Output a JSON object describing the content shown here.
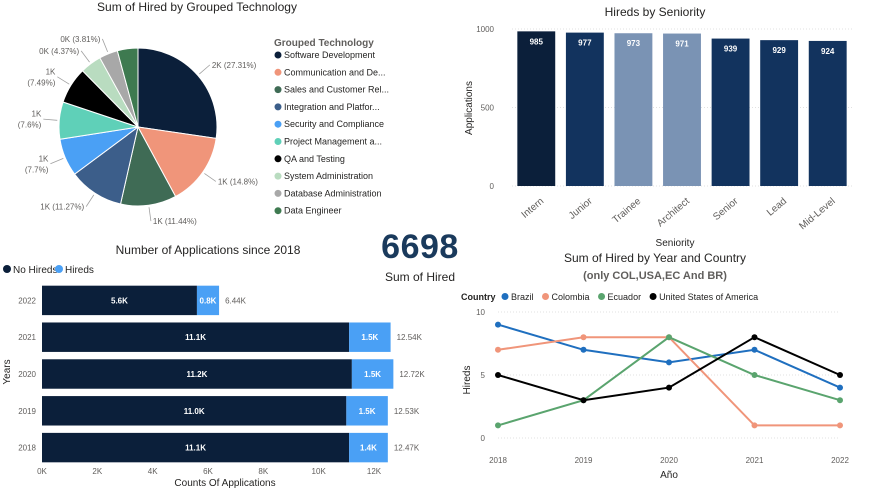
{
  "colors": {
    "navy": "#0b1f3a",
    "blue_dark": "#12335e",
    "blue_light": "#7a93b4",
    "accent_blue": "#4aa0f5",
    "brazil": "#1f6fbf",
    "colombia": "#f0957a",
    "ecuador": "#5aa46e",
    "usa": "#000000"
  },
  "pie": {
    "title": "Sum of Hired by Grouped Technology",
    "legend_title": "Grouped Technology",
    "slices": [
      {
        "name": "Software Development",
        "pct": 27.31,
        "label": "2K (27.31%)",
        "color": "#0b1f3a"
      },
      {
        "name": "Communication and De...",
        "pct": 14.8,
        "label": "1K (14.8%)",
        "color": "#f0957a"
      },
      {
        "name": "Sales and Customer Rel...",
        "pct": 11.44,
        "label": "1K (11.44%)",
        "color": "#3f6b55"
      },
      {
        "name": "Integration and Platfor...",
        "pct": 11.27,
        "label": "1K (11.27%)",
        "color": "#3c5e8a"
      },
      {
        "name": "Security and Compliance",
        "pct": 7.7,
        "label": "1K\n(7.7%)",
        "color": "#4aa0f5"
      },
      {
        "name": "Project Management a...",
        "pct": 7.6,
        "label": "1K\n(7.6%)",
        "color": "#5fd0b8"
      },
      {
        "name": "QA and Testing",
        "pct": 7.49,
        "label": "1K\n(7.49%)",
        "color": "#000000"
      },
      {
        "name": "System Administration",
        "pct": 4.37,
        "label": "0K (4.37%)",
        "color": "#b9dcc0"
      },
      {
        "name": "Database Administration",
        "pct": 3.81,
        "label": "0K (3.81%)",
        "color": "#a8a8a8"
      },
      {
        "name": "Data Engineer",
        "pct": 4.21,
        "label": "",
        "color": "#3e7a50"
      }
    ]
  },
  "seniority": {
    "title": "Hireds by Seniority",
    "ylabel": "Applications",
    "xlabel": "Seniority",
    "yticks": [
      "0",
      "500",
      "1000"
    ],
    "ymax": 1000,
    "bars": [
      {
        "cat": "Intern",
        "value": 985,
        "label": "985",
        "color": "#0b1f3a"
      },
      {
        "cat": "Junior",
        "value": 977,
        "label": "977",
        "color": "#12335e"
      },
      {
        "cat": "Trainee",
        "value": 973,
        "label": "973",
        "color": "#7a93b4"
      },
      {
        "cat": "Architect",
        "value": 971,
        "label": "971",
        "color": "#7a93b4"
      },
      {
        "cat": "Senior",
        "value": 939,
        "label": "939",
        "color": "#12335e"
      },
      {
        "cat": "Lead",
        "value": 929,
        "label": "929",
        "color": "#12335e"
      },
      {
        "cat": "Mid-Level",
        "value": 924,
        "label": "924",
        "color": "#12335e"
      }
    ]
  },
  "kpi": {
    "value": "6698",
    "label": "Sum of Hired"
  },
  "applications": {
    "title": "Number of Applications since 2018",
    "legend": [
      "No Hireds",
      "Hireds"
    ],
    "ylabel": "Years",
    "xlabel": "Counts Of Applications",
    "xticks": [
      "0K",
      "2K",
      "4K",
      "6K",
      "8K",
      "10K",
      "12K"
    ],
    "xmax": 12,
    "rows": [
      {
        "year": "2022",
        "no_hired": 5.6,
        "no_hired_label": "5.6K",
        "hired": 0.8,
        "hired_label": "0.8K",
        "total_label": "6.44K"
      },
      {
        "year": "2021",
        "no_hired": 11.1,
        "no_hired_label": "11.1K",
        "hired": 1.5,
        "hired_label": "1.5K",
        "total_label": "12.54K"
      },
      {
        "year": "2020",
        "no_hired": 11.2,
        "no_hired_label": "11.2K",
        "hired": 1.5,
        "hired_label": "1.5K",
        "total_label": "12.72K"
      },
      {
        "year": "2019",
        "no_hired": 11.0,
        "no_hired_label": "11.0K",
        "hired": 1.5,
        "hired_label": "1.5K",
        "total_label": "12.53K"
      },
      {
        "year": "2018",
        "no_hired": 11.1,
        "no_hired_label": "11.1K",
        "hired": 1.4,
        "hired_label": "1.4K",
        "total_label": "12.47K"
      }
    ]
  },
  "country": {
    "title": "Sum of Hired by Year and Country",
    "subtitle": "(only COL,USA,EC And BR)",
    "legend_title": "Country",
    "ylabel": "Hireds",
    "xlabel": "Año",
    "yticks": [
      "0",
      "5",
      "10"
    ],
    "ymax": 10,
    "years": [
      "2018",
      "2019",
      "2020",
      "2021",
      "2022"
    ]
  },
  "chart_data": [
    {
      "type": "pie",
      "title": "Sum of Hired by Grouped Technology",
      "categories": [
        "Software Development",
        "Communication and De...",
        "Sales and Customer Rel...",
        "Integration and Platfor...",
        "Security and Compliance",
        "Project Management a...",
        "QA and Testing",
        "System Administration",
        "Database Administration",
        "Data Engineer"
      ],
      "values": [
        27.31,
        14.8,
        11.44,
        11.27,
        7.7,
        7.6,
        7.49,
        4.37,
        3.81,
        4.21
      ]
    },
    {
      "type": "bar",
      "title": "Hireds by Seniority",
      "categories": [
        "Intern",
        "Junior",
        "Trainee",
        "Architect",
        "Senior",
        "Lead",
        "Mid-Level"
      ],
      "values": [
        985,
        977,
        973,
        971,
        939,
        929,
        924
      ],
      "xlabel": "Seniority",
      "ylabel": "Applications",
      "ylim": [
        0,
        1000
      ]
    },
    {
      "type": "bar",
      "title": "Number of Applications since 2018",
      "categories": [
        "2022",
        "2021",
        "2020",
        "2019",
        "2018"
      ],
      "series": [
        {
          "name": "No Hireds",
          "values": [
            5.6,
            11.1,
            11.2,
            11.0,
            11.1
          ]
        },
        {
          "name": "Hireds",
          "values": [
            0.8,
            1.5,
            1.5,
            1.5,
            1.4
          ]
        }
      ],
      "xlabel": "Counts Of Applications",
      "ylabel": "Years",
      "xlim": [
        0,
        12
      ]
    },
    {
      "type": "line",
      "title": "Sum of Hired by Year and Country",
      "x": [
        "2018",
        "2019",
        "2020",
        "2021",
        "2022"
      ],
      "series": [
        {
          "name": "Brazil",
          "values": [
            9,
            7,
            6,
            7,
            4
          ],
          "color": "#1f6fbf"
        },
        {
          "name": "Colombia",
          "values": [
            7,
            8,
            8,
            1,
            1
          ],
          "color": "#f0957a"
        },
        {
          "name": "Ecuador",
          "values": [
            1,
            3,
            8,
            5,
            3
          ],
          "color": "#5aa46e"
        },
        {
          "name": "United States of America",
          "values": [
            5,
            3,
            4,
            8,
            5
          ],
          "color": "#000000"
        }
      ],
      "xlabel": "Año",
      "ylabel": "Hireds",
      "ylim": [
        0,
        10
      ]
    }
  ]
}
